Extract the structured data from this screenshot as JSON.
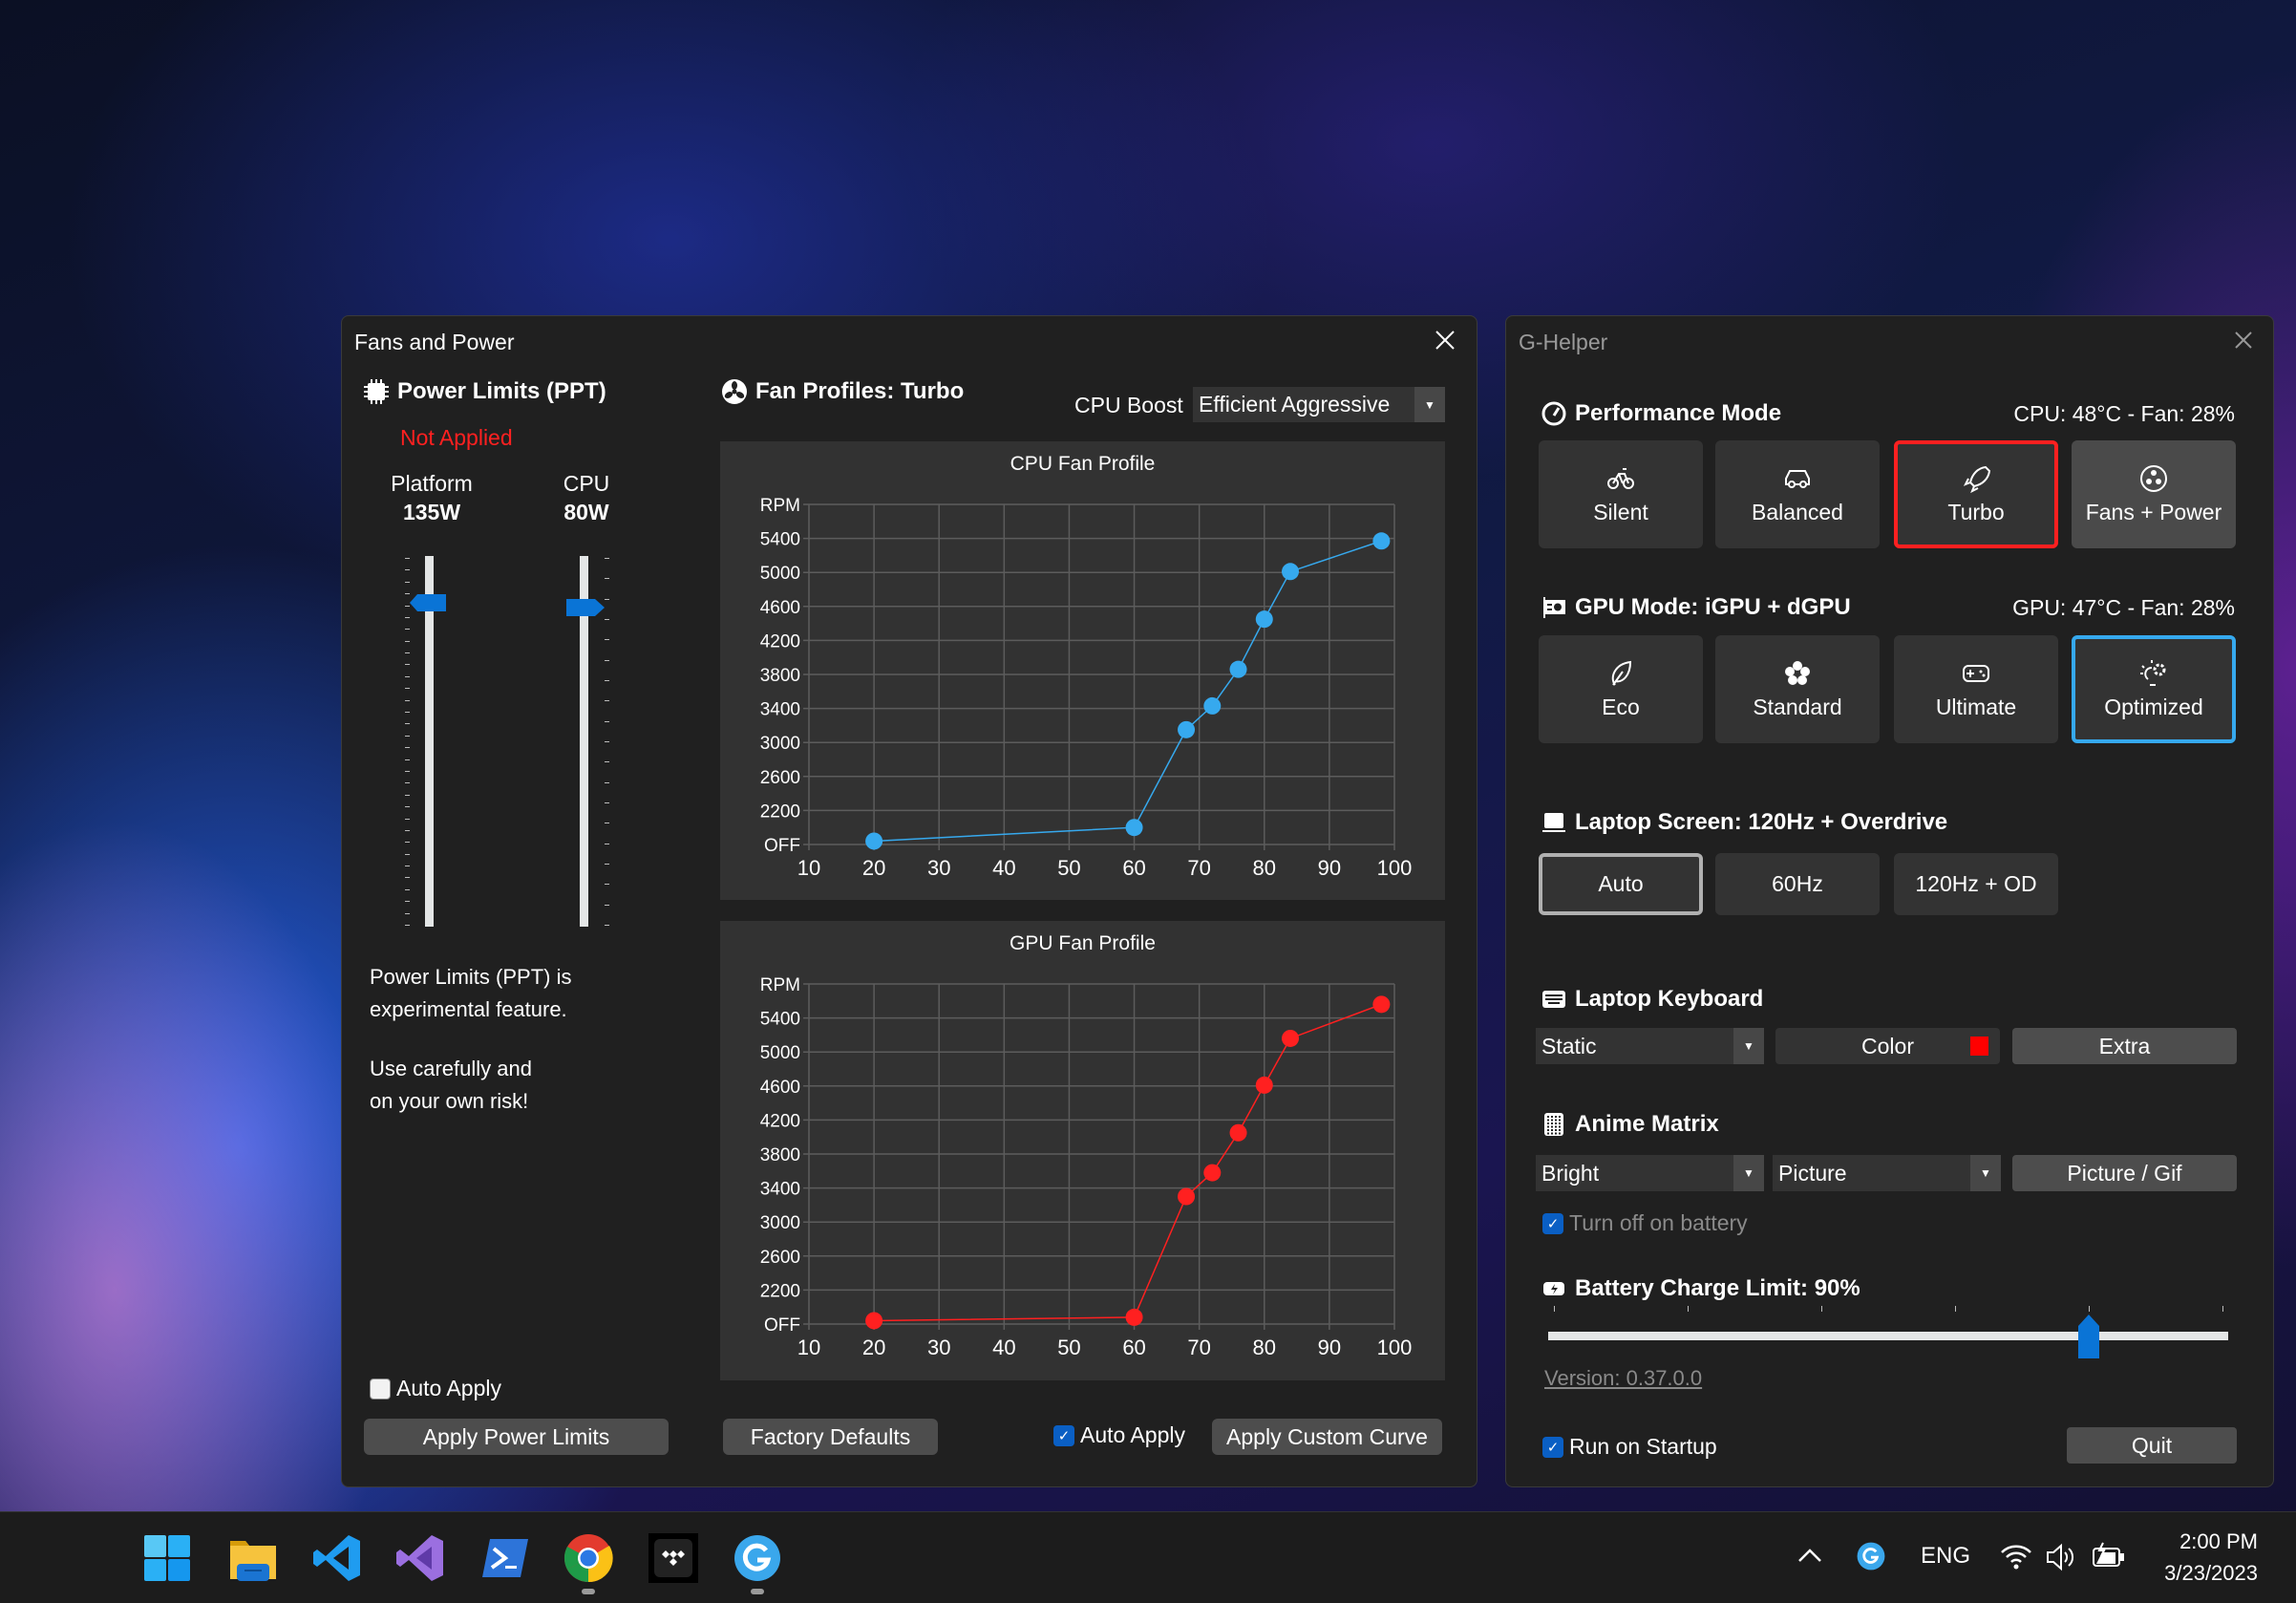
{
  "fans_window": {
    "title": "Fans and Power",
    "power_limits": {
      "title": "Power Limits (PPT)",
      "status": "Not Applied",
      "status_color": "#ff2020",
      "sliders": [
        {
          "label": "Platform",
          "value": "135W"
        },
        {
          "label": "CPU",
          "value": "80W"
        }
      ],
      "note1": [
        "Power Limits (PPT) is",
        "experimental feature."
      ],
      "note2": [
        "Use carefully and",
        "on your own risk!"
      ],
      "auto_apply": {
        "label": "Auto Apply",
        "checked": false
      },
      "apply_button": "Apply Power Limits"
    },
    "fan_profiles": {
      "title": "Fan Profiles: Turbo",
      "cpu_boost_label": "CPU Boost",
      "cpu_boost_value": "Efficient Aggressive",
      "factory_defaults": "Factory Defaults",
      "auto_apply": {
        "label": "Auto Apply",
        "checked": true
      },
      "apply_curve": "Apply Custom Curve"
    }
  },
  "chart_data": [
    {
      "type": "line",
      "title": "CPU Fan Profile",
      "color": "#36a9ee",
      "x": [
        20,
        60,
        68,
        72,
        76,
        80,
        84,
        98
      ],
      "y": [
        1840,
        2000,
        3150,
        3430,
        3860,
        4450,
        5010,
        5370
      ],
      "xlim": [
        10,
        100
      ],
      "x_ticks": [
        10,
        20,
        30,
        40,
        50,
        60,
        70,
        80,
        90,
        100
      ],
      "ylim": [
        1800,
        5800
      ],
      "y_ticks": [
        1800,
        2200,
        2600,
        3000,
        3400,
        3800,
        4200,
        4600,
        5000,
        5400,
        5800
      ],
      "y_tick_labels": [
        "OFF",
        "2200",
        "2600",
        "3000",
        "3400",
        "3800",
        "4200",
        "4600",
        "5000",
        "5400",
        "RPM"
      ],
      "grid": true
    },
    {
      "type": "line",
      "title": "GPU Fan Profile",
      "color": "#ff2020",
      "x": [
        20,
        60,
        68,
        72,
        76,
        80,
        84,
        98
      ],
      "y": [
        1840,
        1880,
        3300,
        3580,
        4050,
        4610,
        5160,
        5560
      ],
      "xlim": [
        10,
        100
      ],
      "x_ticks": [
        10,
        20,
        30,
        40,
        50,
        60,
        70,
        80,
        90,
        100
      ],
      "ylim": [
        1800,
        5800
      ],
      "y_ticks": [
        1800,
        2200,
        2600,
        3000,
        3400,
        3800,
        4200,
        4600,
        5000,
        5400,
        5800
      ],
      "y_tick_labels": [
        "OFF",
        "2200",
        "2600",
        "3000",
        "3400",
        "3800",
        "4200",
        "4600",
        "5000",
        "5400",
        "RPM"
      ],
      "grid": true
    }
  ],
  "ghelper": {
    "title": "G-Helper",
    "performance": {
      "title": "Performance Mode",
      "stats": "CPU: 48°C -  Fan: 28%",
      "selected": "Turbo",
      "selected_color": "#ff2020",
      "modes": [
        {
          "label": "Silent",
          "icon": "bicycle-icon"
        },
        {
          "label": "Balanced",
          "icon": "car-icon"
        },
        {
          "label": "Turbo",
          "icon": "rocket-icon"
        },
        {
          "label": "Fans + Power",
          "icon": "fan-icon"
        }
      ]
    },
    "gpu": {
      "title": "GPU Mode: iGPU + dGPU",
      "stats": "GPU: 47°C -  Fan: 28%",
      "selected": "Optimized",
      "selected_color": "#36a9ee",
      "modes": [
        {
          "label": "Eco",
          "icon": "leaf-icon"
        },
        {
          "label": "Standard",
          "icon": "flower-icon"
        },
        {
          "label": "Ultimate",
          "icon": "gamepad-icon"
        },
        {
          "label": "Optimized",
          "icon": "lightbulb-gear-icon"
        }
      ]
    },
    "screen": {
      "title": "Laptop Screen: 120Hz + Overdrive",
      "selected": "Auto",
      "modes": [
        "Auto",
        "60Hz",
        "120Hz + OD"
      ]
    },
    "keyboard": {
      "title": "Laptop Keyboard",
      "mode": "Static",
      "color_label": "Color",
      "color": "#ff0000",
      "extra": "Extra"
    },
    "anime": {
      "title": "Anime Matrix",
      "brightness": "Bright",
      "mode": "Picture",
      "picture_button": "Picture / Gif",
      "battery_off": {
        "label": "Turn off on battery",
        "checked": true
      }
    },
    "battery": {
      "title": "Battery Charge Limit: 90%",
      "value": 90,
      "min": 50,
      "max": 100
    },
    "version": "Version: 0.37.0.0",
    "startup": {
      "label": "Run on Startup",
      "checked": true
    },
    "quit": "Quit"
  },
  "taskbar": {
    "apps": [
      "windows-start-icon",
      "file-explorer-icon",
      "vscode-icon",
      "visual-studio-icon",
      "powershell-icon",
      "chrome-icon",
      "tidal-icon",
      "ghelper-icon"
    ],
    "language": "ENG",
    "time": "2:00 PM",
    "date": "3/23/2023"
  }
}
